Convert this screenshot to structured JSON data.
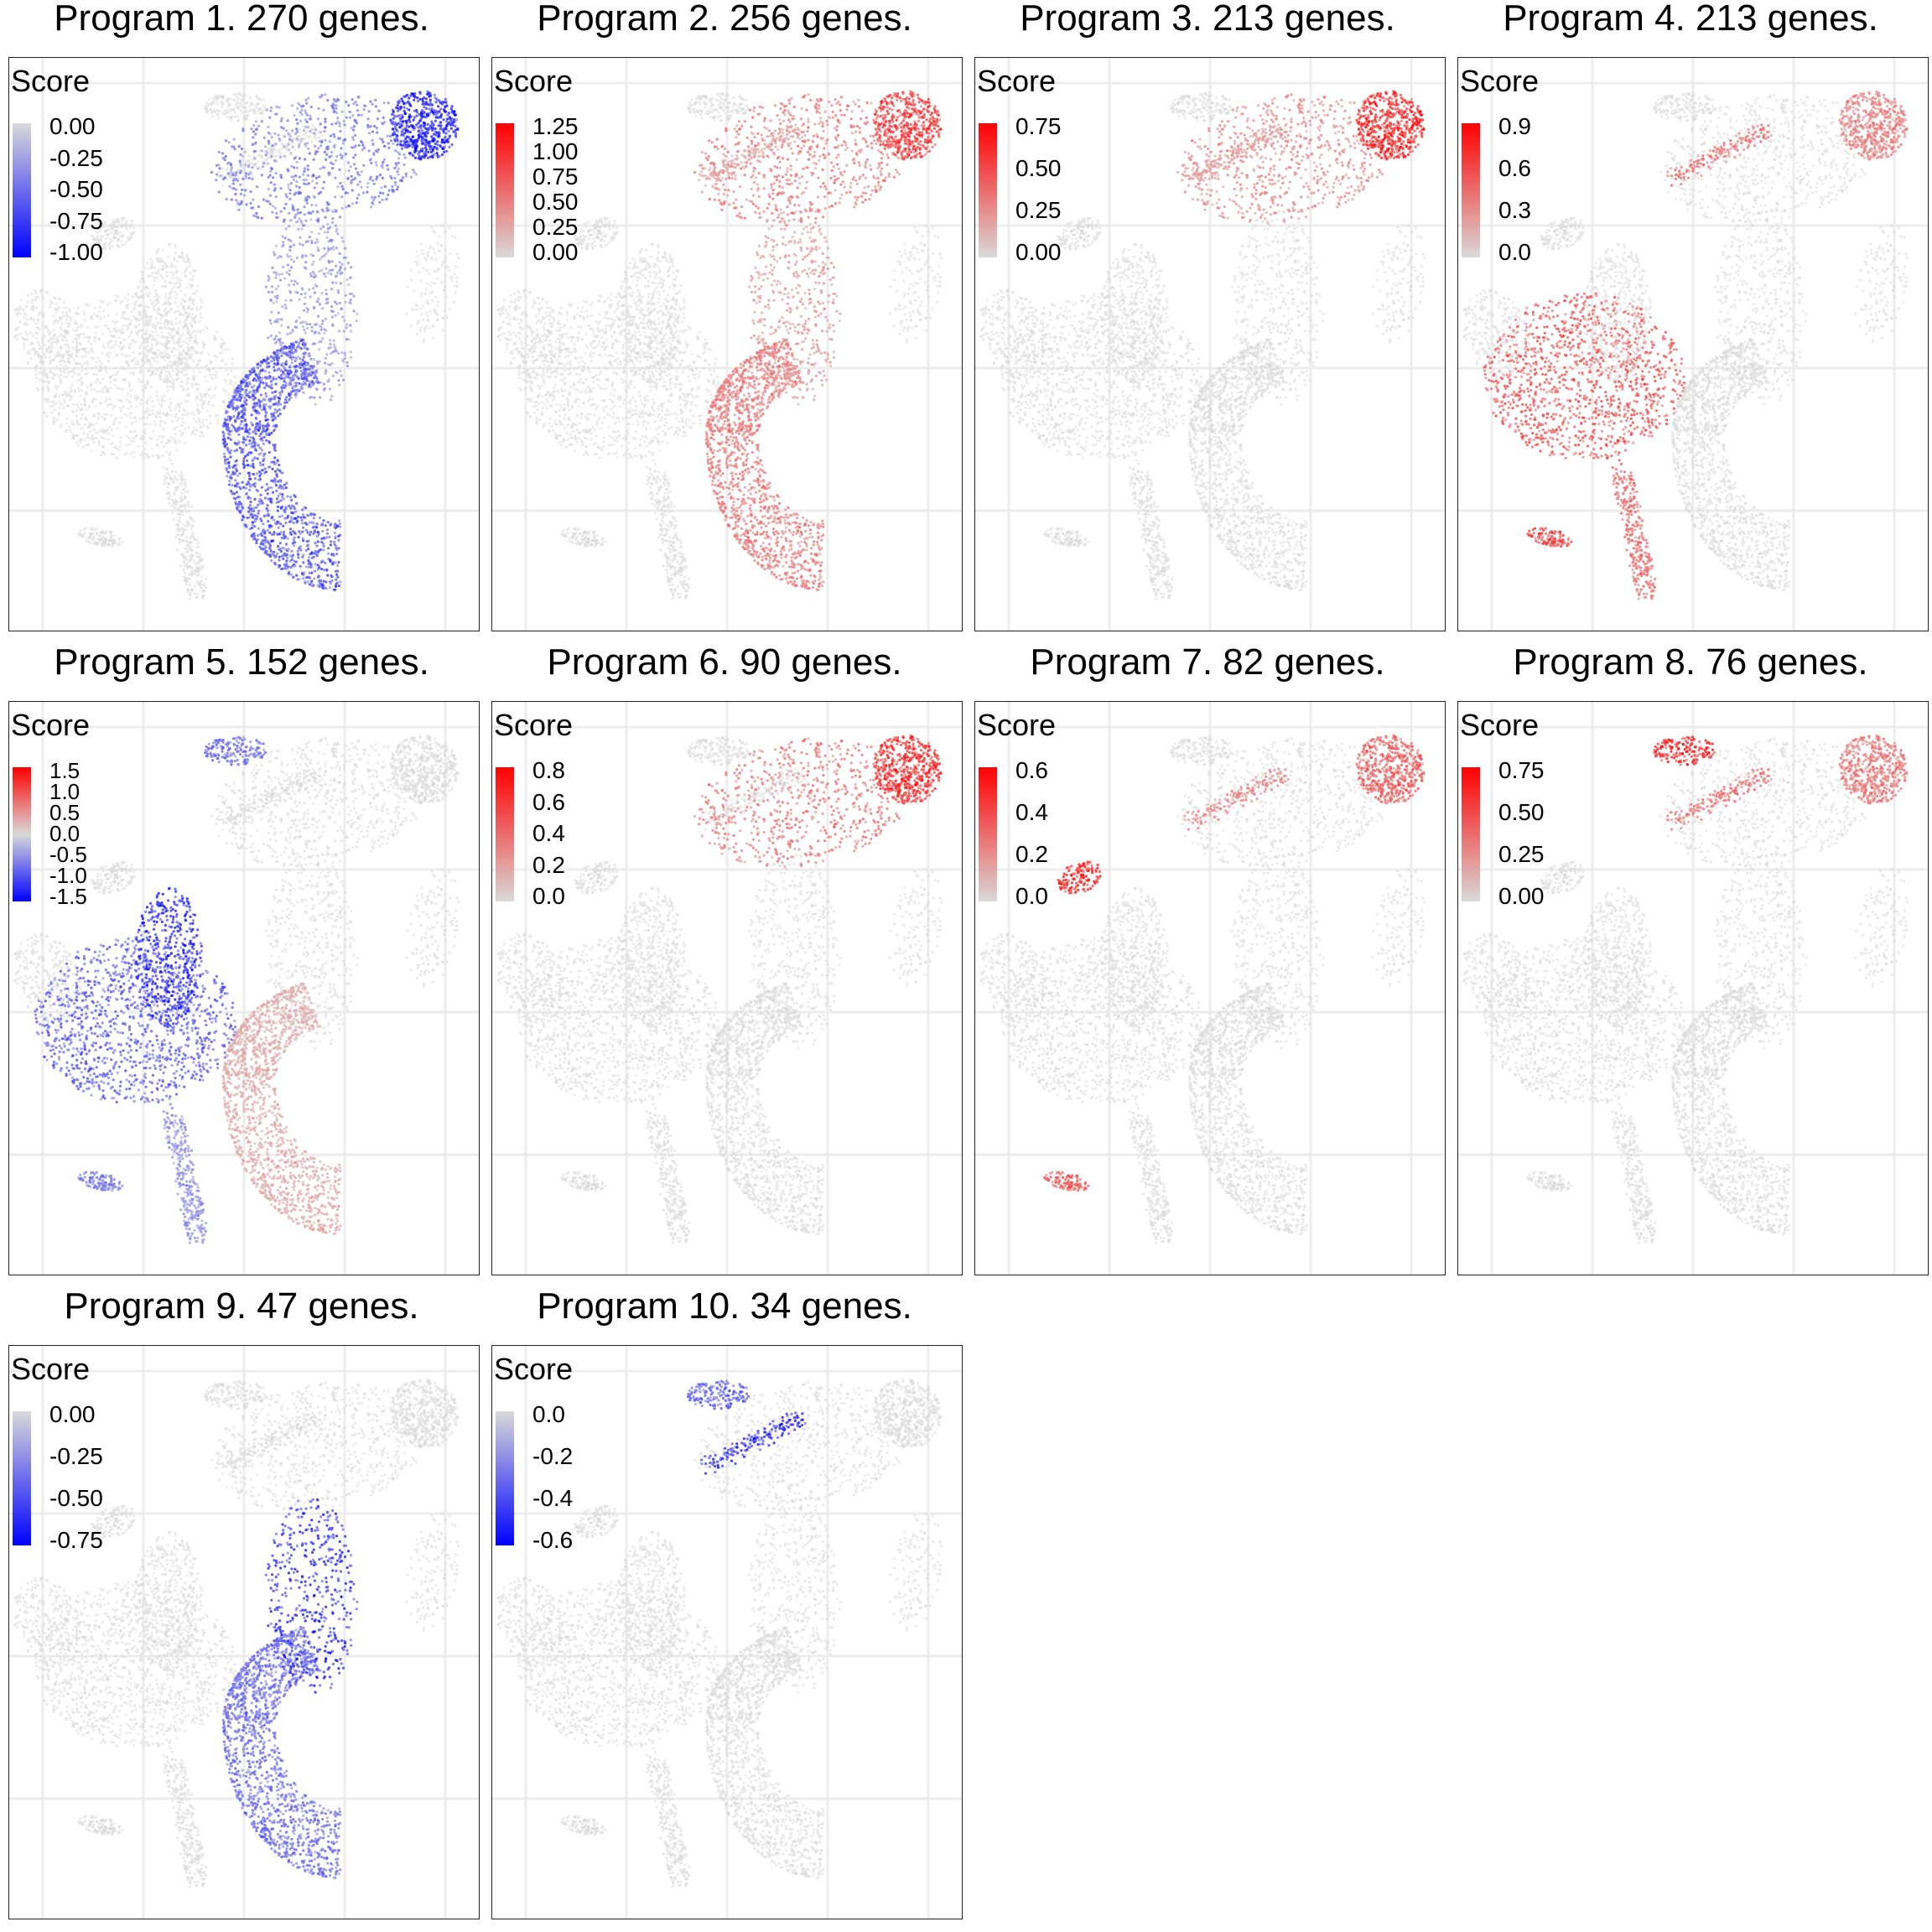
{
  "chart_data": [
    {
      "type": "scatter",
      "title": "Program 1. 270 genes.",
      "legend_title": "Score",
      "legend_placement": "top-left",
      "ticks": [
        "0.00",
        "-0.25",
        "-0.50",
        "-0.75",
        "-1.00"
      ],
      "scale": [
        -1.0,
        0.0
      ],
      "colors": [
        "#0000ff",
        "#d9d9d9"
      ],
      "hot": [
        {
          "region": "right-upper-corner",
          "score": -1.0
        },
        {
          "region": "right-lower-crescent",
          "score": -0.7
        },
        {
          "region": "right-upper-body",
          "score": -0.5
        },
        {
          "region": "right-middle",
          "score": -0.35
        }
      ]
    },
    {
      "type": "scatter",
      "title": "Program 2. 256 genes.",
      "legend_title": "Score",
      "legend_placement": "top-left",
      "ticks": [
        "1.25",
        "1.00",
        "0.75",
        "0.50",
        "0.25",
        "0.00"
      ],
      "scale": [
        0.0,
        1.25
      ],
      "colors": [
        "#d9d9d9",
        "#ff0000"
      ],
      "hot": [
        {
          "region": "right-upper-corner",
          "score": 1.0
        },
        {
          "region": "right-upper-body",
          "score": 0.6
        },
        {
          "region": "right-lower-crescent",
          "score": 0.6
        },
        {
          "region": "right-middle",
          "score": 0.4
        },
        {
          "region": "small-upper-clusters",
          "score": 0.3
        }
      ]
    },
    {
      "type": "scatter",
      "title": "Program 3. 213 genes.",
      "legend_title": "Score",
      "legend_placement": "top-left",
      "ticks": [
        "0.75",
        "0.50",
        "0.25",
        "0.00"
      ],
      "scale": [
        0.0,
        0.9
      ],
      "colors": [
        "#d9d9d9",
        "#ff0000"
      ],
      "hot": [
        {
          "region": "right-upper-corner",
          "score": 0.85
        },
        {
          "region": "right-upper-body",
          "score": 0.35
        },
        {
          "region": "small-upper-clusters",
          "score": 0.3
        }
      ]
    },
    {
      "type": "scatter",
      "title": "Program 4. 213 genes.",
      "legend_title": "Score",
      "legend_placement": "top-left",
      "ticks": [
        "0.9",
        "0.6",
        "0.3",
        "0.0"
      ],
      "scale": [
        0.0,
        1.1
      ],
      "colors": [
        "#d9d9d9",
        "#ff0000"
      ],
      "hot": [
        {
          "region": "left-body",
          "score": 0.75
        },
        {
          "region": "left-tail",
          "score": 0.6
        },
        {
          "region": "left-small-cluster",
          "score": 0.8
        },
        {
          "region": "right-upper-corner",
          "score": 0.5
        },
        {
          "region": "small-upper-clusters",
          "score": 0.6
        }
      ]
    },
    {
      "type": "scatter",
      "title": "Program 5. 152 genes.",
      "legend_title": "Score",
      "legend_placement": "top-left",
      "ticks": [
        "1.5",
        "1.0",
        "0.5",
        "0.0",
        "-0.5",
        "-1.0",
        "-1.5"
      ],
      "scale": [
        -1.6,
        1.6
      ],
      "colors": [
        "#0000ff",
        "#d9d9d9",
        "#ff0000"
      ],
      "hot": [
        {
          "region": "left-center-core",
          "score": -1.5
        },
        {
          "region": "left-body",
          "score": -1.0
        },
        {
          "region": "left-tail",
          "score": -0.6
        },
        {
          "region": "left-small-cluster",
          "score": -0.8
        },
        {
          "region": "top-cluster",
          "score": -0.9
        },
        {
          "region": "right-lower-crescent",
          "score": 0.4
        }
      ]
    },
    {
      "type": "scatter",
      "title": "Program 6. 90 genes.",
      "legend_title": "Score",
      "legend_placement": "top-left",
      "ticks": [
        "0.8",
        "0.6",
        "0.4",
        "0.2",
        "0.0"
      ],
      "scale": [
        0.0,
        0.9
      ],
      "colors": [
        "#d9d9d9",
        "#ff0000"
      ],
      "hot": [
        {
          "region": "right-upper-corner",
          "score": 0.8
        },
        {
          "region": "right-upper-body",
          "score": 0.45
        }
      ]
    },
    {
      "type": "scatter",
      "title": "Program 7. 82 genes.",
      "legend_title": "Score",
      "legend_placement": "top-left",
      "ticks": [
        "0.6",
        "0.4",
        "0.2",
        "0.0"
      ],
      "scale": [
        0.0,
        0.7
      ],
      "colors": [
        "#d9d9d9",
        "#ff0000"
      ],
      "hot": [
        {
          "region": "left-top-cluster",
          "score": 0.7
        },
        {
          "region": "right-upper-corner",
          "score": 0.45
        },
        {
          "region": "left-small-cluster",
          "score": 0.45
        },
        {
          "region": "small-upper-clusters",
          "score": 0.3
        }
      ]
    },
    {
      "type": "scatter",
      "title": "Program 8. 76 genes.",
      "legend_title": "Score",
      "legend_placement": "top-left",
      "ticks": [
        "0.75",
        "0.50",
        "0.25",
        "0.00"
      ],
      "scale": [
        0.0,
        0.9
      ],
      "colors": [
        "#d9d9d9",
        "#ff0000"
      ],
      "hot": [
        {
          "region": "top-cluster",
          "score": 0.85
        },
        {
          "region": "small-upper-clusters",
          "score": 0.5
        },
        {
          "region": "right-upper-corner",
          "score": 0.45
        }
      ]
    },
    {
      "type": "scatter",
      "title": "Program 9. 47 genes.",
      "legend_title": "Score",
      "legend_placement": "top-left",
      "ticks": [
        "0.00",
        "-0.25",
        "-0.50",
        "-0.75"
      ],
      "scale": [
        -0.9,
        0.0
      ],
      "colors": [
        "#0000ff",
        "#d9d9d9"
      ],
      "hot": [
        {
          "region": "right-middle",
          "score": -0.8
        },
        {
          "region": "right-lower-crescent",
          "score": -0.5
        }
      ]
    },
    {
      "type": "scatter",
      "title": "Program 10. 34 genes.",
      "legend_title": "Score",
      "legend_placement": "top-left",
      "ticks": [
        "0.0",
        "-0.2",
        "-0.4",
        "-0.6"
      ],
      "scale": [
        -0.7,
        0.0
      ],
      "colors": [
        "#0000ff",
        "#d9d9d9"
      ],
      "hot": [
        {
          "region": "small-upper-clusters",
          "score": -0.65
        },
        {
          "region": "top-cluster",
          "score": -0.45
        }
      ]
    }
  ]
}
